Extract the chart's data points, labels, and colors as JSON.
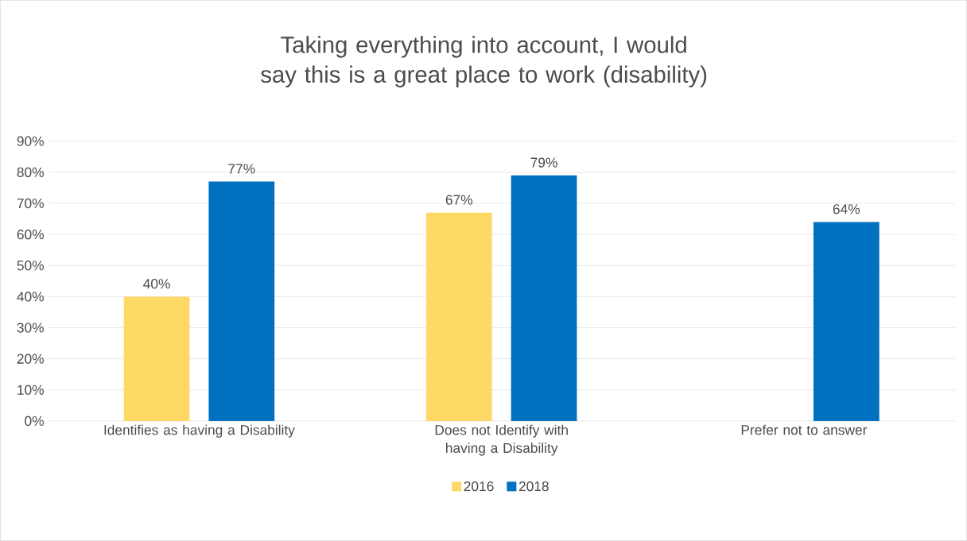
{
  "chart_data": {
    "type": "bar",
    "title": "Taking everything into account, I would say this is a great place to work (disability)",
    "categories": [
      "Identifies as having a Disability",
      "Does not Identify with having a Disability",
      "Prefer not to answer"
    ],
    "series": [
      {
        "name": "2016",
        "color": "#ffd966",
        "values": [
          40,
          67,
          null
        ],
        "value_labels": [
          "40%",
          "67%",
          null
        ]
      },
      {
        "name": "2018",
        "color": "#0070c0",
        "values": [
          77,
          79,
          64
        ],
        "value_labels": [
          "77%",
          "79%",
          "64%"
        ]
      }
    ],
    "ylim": [
      0,
      90
    ],
    "yticks": [
      {
        "value": 0,
        "label": "0%"
      },
      {
        "value": 10,
        "label": "10%"
      },
      {
        "value": 20,
        "label": "20%"
      },
      {
        "value": 30,
        "label": "30%"
      },
      {
        "value": 40,
        "label": "40%"
      },
      {
        "value": 50,
        "label": "50%"
      },
      {
        "value": 60,
        "label": "60%"
      },
      {
        "value": 70,
        "label": "70%"
      },
      {
        "value": 80,
        "label": "80%"
      },
      {
        "value": 90,
        "label": "90%"
      }
    ],
    "grid": "y",
    "legend": "bottom"
  }
}
